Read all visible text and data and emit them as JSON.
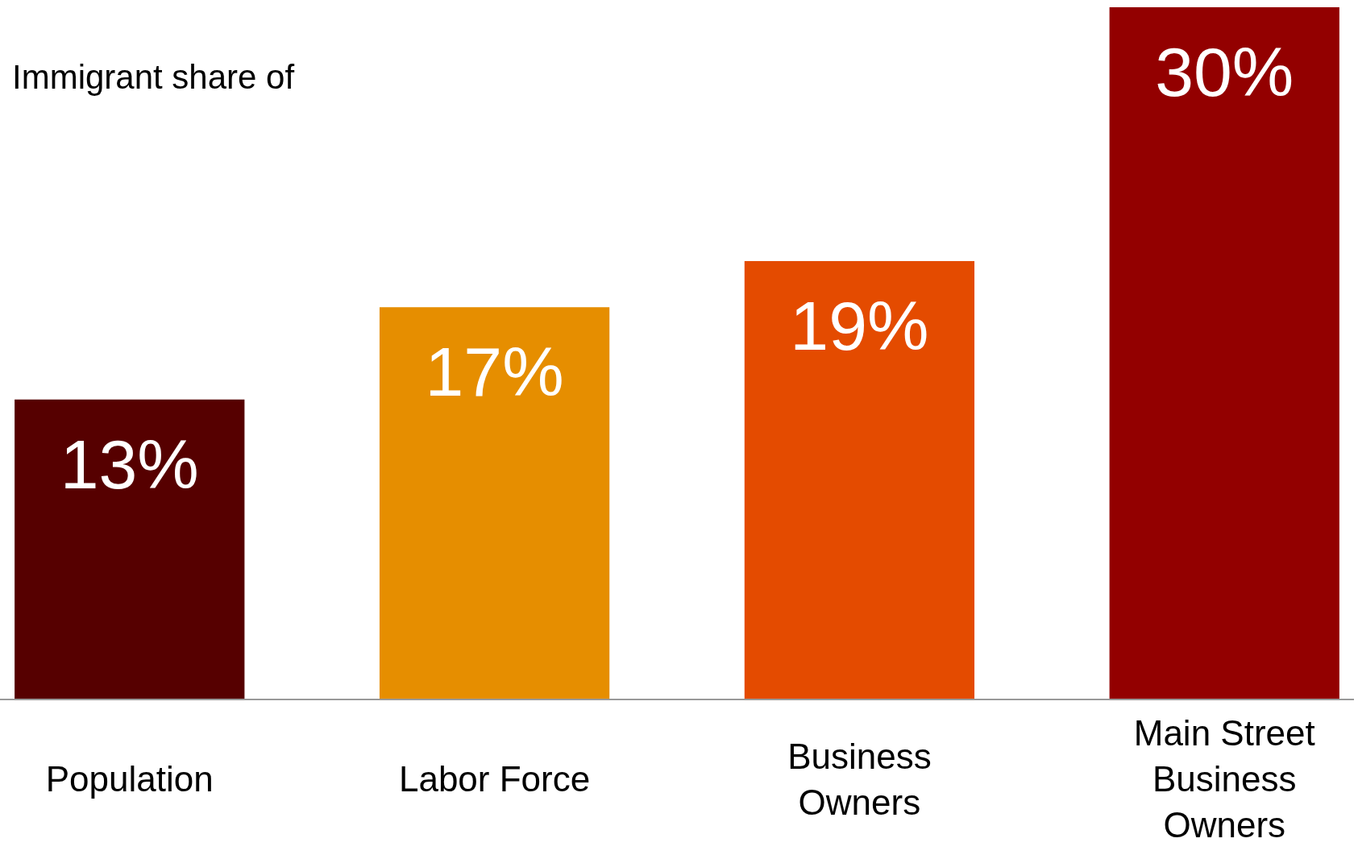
{
  "chart_data": {
    "type": "bar",
    "title": "Immigrant share of",
    "categories": [
      "Population",
      "Labor Force",
      "Business Owners",
      "Main Street Business Owners"
    ],
    "values": [
      13,
      17,
      19,
      30
    ],
    "colors": [
      "#560000",
      "#e68e00",
      "#e44b00",
      "#930000"
    ],
    "value_labels": [
      "13%",
      "17%",
      "19%",
      "30%"
    ],
    "ylim": [
      0,
      30
    ]
  }
}
